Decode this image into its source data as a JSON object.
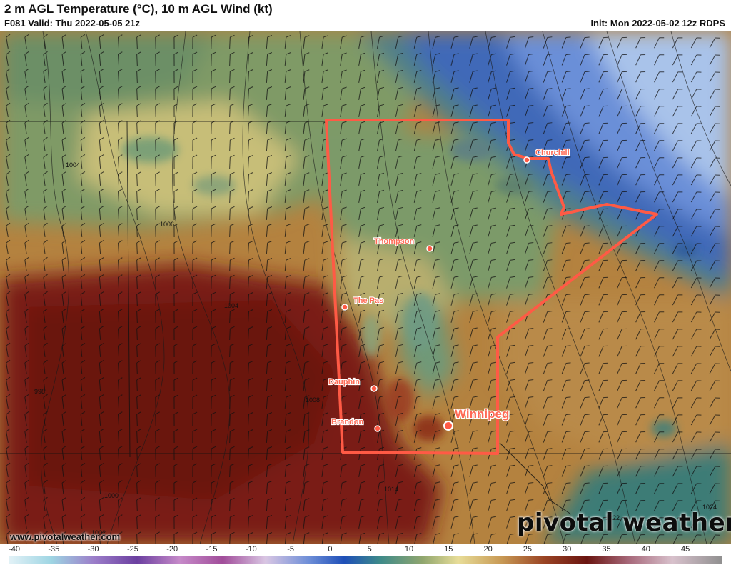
{
  "header": {
    "title": "2 m AGL Temperature (°C), 10 m AGL Wind (kt)",
    "valid": "F081 Valid: Thu 2022-05-05 21z",
    "init": "Init: Mon 2022-05-02 12z RDPS"
  },
  "map": {
    "region_outline_color": "#ff5a45",
    "cities": [
      {
        "name": "Churchill",
        "size": "small"
      },
      {
        "name": "Thompson",
        "size": "small"
      },
      {
        "name": "The Pas",
        "size": "small"
      },
      {
        "name": "Dauphin",
        "size": "small"
      },
      {
        "name": "Brandon",
        "size": "small"
      },
      {
        "name": "Winnipeg",
        "size": "large"
      }
    ],
    "isobar_labels": [
      "1004",
      "1006",
      "1004",
      "998",
      "1008",
      "1000",
      "1014",
      "1002",
      "1022",
      "1024"
    ]
  },
  "colorbar": {
    "ticks": [
      "-40",
      "-35",
      "-30",
      "-25",
      "-20",
      "-15",
      "-10",
      "-5",
      "0",
      "5",
      "10",
      "15",
      "20",
      "25",
      "30",
      "35",
      "40",
      "45"
    ]
  },
  "footer": {
    "url": "www.pivotalweather.com",
    "brand": "pivotal weather"
  }
}
